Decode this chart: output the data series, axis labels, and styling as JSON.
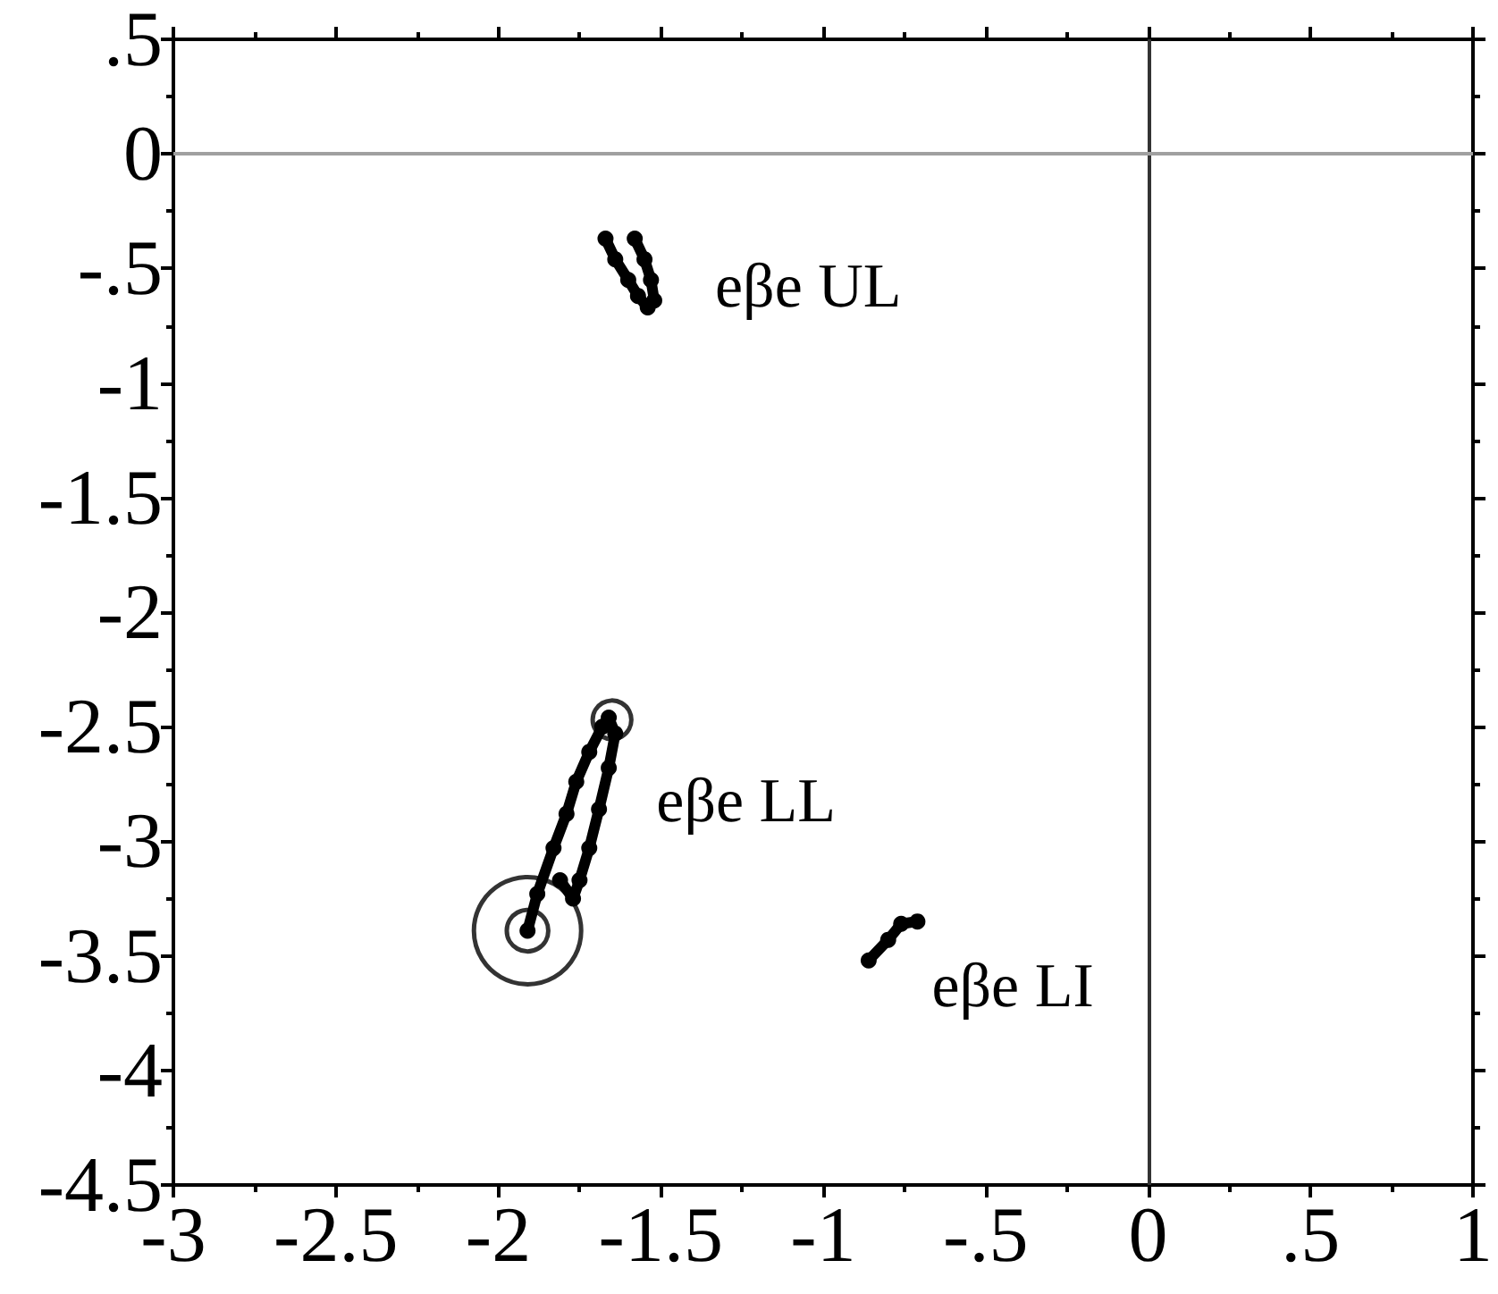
{
  "chart_data": {
    "type": "line",
    "marker": "circle",
    "xlim": [
      -3,
      1
    ],
    "xticks": [
      -3,
      -2.5,
      -2,
      -1.5,
      -1,
      {
        "value": -0.5,
        "label": "-.5"
      },
      0,
      {
        "value": 0.5,
        "label": ".5"
      },
      1
    ],
    "ylim": [
      -4.5,
      0.5
    ],
    "yticks": [
      {
        "value": 0.5,
        "label": ".5"
      },
      0,
      {
        "value": -0.5,
        "label": "-.5"
      },
      -1,
      -1.5,
      -2,
      -2.5,
      -3,
      -3.5,
      -4,
      -4.5
    ],
    "ref_lines": [
      {
        "axis": "x",
        "value": 0,
        "color": "#333333"
      },
      {
        "axis": "y",
        "value": 0,
        "color": "#a0a0a0"
      }
    ],
    "series": [
      {
        "name": "eβe UL",
        "color": "#000000",
        "x": [
          -1.67,
          -1.64,
          -1.6,
          -1.57,
          -1.54,
          -1.52,
          -1.53,
          -1.55,
          -1.58
        ],
        "values": [
          -0.37,
          -0.46,
          -0.55,
          -0.62,
          -0.67,
          -0.64,
          -0.55,
          -0.46,
          -0.37
        ]
      },
      {
        "name": "eβe LL",
        "color": "#000000",
        "x": [
          -1.91,
          -1.88,
          -1.83,
          -1.79,
          -1.76,
          -1.72,
          -1.68,
          -1.66,
          -1.64,
          -1.66,
          -1.69,
          -1.72,
          -1.75,
          -1.77,
          -1.81
        ],
        "values": [
          -3.39,
          -3.23,
          -3.03,
          -2.88,
          -2.74,
          -2.61,
          -2.5,
          -2.46,
          -2.53,
          -2.68,
          -2.86,
          -3.03,
          -3.17,
          -3.25,
          -3.17
        ]
      },
      {
        "name": "eβe LI",
        "color": "#000000",
        "x": [
          -0.71,
          -0.76,
          -0.8,
          -0.86
        ],
        "values": [
          -3.35,
          -3.36,
          -3.43,
          -3.52
        ]
      },
      {
        "type": "bubble",
        "color": "#000000",
        "x": [
          -1.91,
          -1.91,
          -1.65
        ],
        "values": [
          -3.39,
          -3.39,
          -2.47
        ],
        "sizes": [
          1,
          0.15,
          0.13
        ]
      }
    ]
  }
}
